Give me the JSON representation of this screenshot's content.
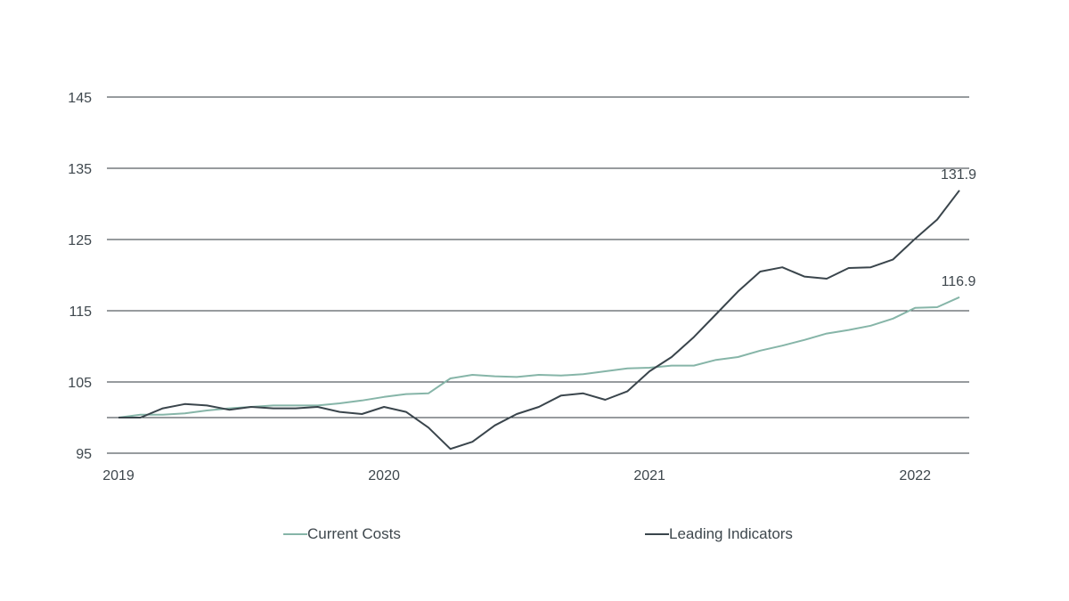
{
  "chart_data": {
    "type": "line",
    "title": "",
    "xlabel": "",
    "ylabel": "",
    "ylim": [
      95,
      145
    ],
    "yticks": [
      95,
      105,
      115,
      125,
      135,
      145
    ],
    "xticks": [
      {
        "label": "2019",
        "value": 2019.0
      },
      {
        "label": "2020",
        "value": 2020.0
      },
      {
        "label": "2021",
        "value": 2021.0
      },
      {
        "label": "2022",
        "value": 2022.0
      }
    ],
    "x": [
      2019.0,
      2019.083,
      2019.167,
      2019.25,
      2019.333,
      2019.417,
      2019.5,
      2019.583,
      2019.667,
      2019.75,
      2019.833,
      2019.917,
      2020.0,
      2020.083,
      2020.167,
      2020.25,
      2020.333,
      2020.417,
      2020.5,
      2020.583,
      2020.667,
      2020.75,
      2020.833,
      2020.917,
      2021.0,
      2021.083,
      2021.167,
      2021.25,
      2021.333,
      2021.417,
      2021.5,
      2021.583,
      2021.667,
      2021.75,
      2021.833,
      2021.917,
      2022.0,
      2022.083,
      2022.167
    ],
    "series": [
      {
        "name": "Current Costs",
        "color": "#86b5a8",
        "end_label": "116.9",
        "values": [
          100.0,
          100.4,
          100.4,
          100.6,
          101.0,
          101.3,
          101.5,
          101.7,
          101.7,
          101.7,
          102.0,
          102.4,
          102.9,
          103.3,
          103.4,
          105.5,
          106.0,
          105.8,
          105.7,
          106.0,
          105.9,
          106.1,
          106.5,
          106.9,
          107.0,
          107.3,
          107.3,
          108.1,
          108.5,
          109.4,
          110.1,
          110.9,
          111.8,
          112.3,
          112.9,
          113.9,
          115.4,
          115.5,
          116.9
        ]
      },
      {
        "name": "Leading Indicators",
        "color": "#3a454c",
        "end_label": "131.9",
        "values": [
          100.0,
          100.0,
          101.3,
          101.9,
          101.7,
          101.1,
          101.5,
          101.3,
          101.3,
          101.5,
          100.8,
          100.5,
          101.5,
          100.8,
          98.6,
          95.6,
          96.6,
          98.9,
          100.5,
          101.5,
          103.1,
          103.4,
          102.5,
          103.7,
          106.5,
          108.5,
          111.3,
          114.5,
          117.7,
          120.5,
          121.1,
          119.8,
          119.5,
          121.0,
          121.1,
          122.2,
          125.1,
          127.8,
          131.9
        ]
      }
    ],
    "extra_gridlines": [
      100
    ],
    "grid": true,
    "legend_position": "bottom"
  },
  "legend": {
    "current_costs": "Current Costs",
    "leading_indicators": "Leading Indicators"
  }
}
